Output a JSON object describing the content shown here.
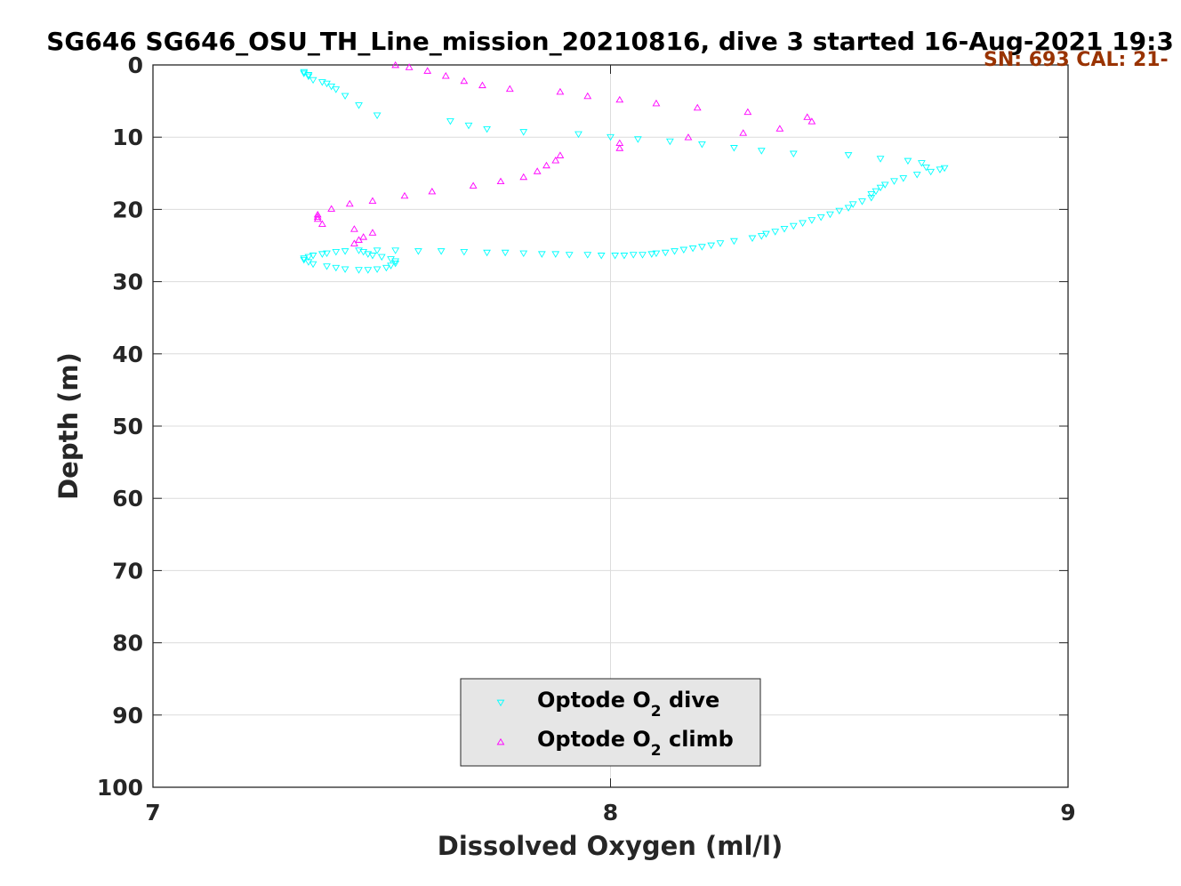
{
  "chart_data": {
    "type": "scatter",
    "title": "SG646 SG646_OSU_TH_Line_mission_20210816, dive 3 started 16-Aug-2021 19:3",
    "annotation": "SN: 693  CAL: 21-",
    "xlabel": "Dissolved Oxygen (ml/l)",
    "ylabel": "Depth (m)",
    "xlim": [
      7,
      9
    ],
    "ylim": [
      0,
      100
    ],
    "y_reversed": true,
    "x_ticks": [
      "7",
      "8",
      "9"
    ],
    "y_ticks": [
      "0",
      "10",
      "20",
      "30",
      "40",
      "50",
      "60",
      "70",
      "80",
      "90",
      "100"
    ],
    "grid": true,
    "legend_position": "bottom-center",
    "colors": {
      "dive": "#00ffff",
      "climb": "#ff00ff",
      "annotation": "#993300",
      "legend_bg": "#e6e6e6"
    },
    "series": [
      {
        "name": "Optode O2 dive",
        "legend_main": "Optode O",
        "legend_sub": "2",
        "legend_tail": " dive",
        "marker": "triangle-down",
        "x": [
          7.33,
          7.33,
          7.34,
          7.34,
          7.35,
          7.37,
          7.38,
          7.39,
          7.4,
          7.42,
          7.45,
          7.49,
          7.65,
          7.69,
          7.73,
          7.81,
          7.93,
          8.0,
          8.06,
          8.13,
          8.2,
          8.27,
          8.33,
          8.4,
          8.52,
          8.59,
          8.65,
          8.68,
          8.69,
          8.72,
          8.73,
          8.7,
          8.67,
          8.64,
          8.62,
          8.6,
          8.59,
          8.58,
          8.57,
          8.57,
          8.55,
          8.53,
          8.52,
          8.5,
          8.48,
          8.46,
          8.44,
          8.42,
          8.4,
          8.38,
          8.36,
          8.34,
          8.33,
          8.31,
          8.27,
          8.24,
          8.22,
          8.2,
          8.18,
          8.16,
          8.14,
          8.12,
          8.1,
          8.09,
          8.07,
          8.05,
          8.03,
          8.01,
          7.98,
          7.95,
          7.91,
          7.88,
          7.85,
          7.81,
          7.77,
          7.73,
          7.68,
          7.63,
          7.58,
          7.53,
          7.49,
          7.45,
          7.42,
          7.4,
          7.38,
          7.37,
          7.35,
          7.34,
          7.33,
          7.33,
          7.34,
          7.35,
          7.38,
          7.4,
          7.42,
          7.45,
          7.47,
          7.49,
          7.51,
          7.52,
          7.53,
          7.53,
          7.52,
          7.5,
          7.48,
          7.47,
          7.46
        ],
        "y": [
          1.0,
          1.2,
          1.4,
          1.6,
          2.1,
          2.4,
          2.6,
          3.0,
          3.4,
          4.3,
          5.6,
          7.0,
          7.8,
          8.4,
          8.9,
          9.3,
          9.6,
          10.0,
          10.3,
          10.6,
          11.0,
          11.5,
          11.9,
          12.3,
          12.5,
          13.0,
          13.3,
          13.6,
          14.2,
          14.5,
          14.3,
          14.8,
          15.2,
          15.7,
          16.1,
          16.6,
          17.0,
          17.5,
          17.9,
          18.4,
          18.9,
          19.3,
          19.8,
          20.2,
          20.7,
          21.1,
          21.5,
          21.9,
          22.3,
          22.7,
          23.1,
          23.4,
          23.7,
          24.0,
          24.4,
          24.7,
          25.0,
          25.2,
          25.4,
          25.6,
          25.8,
          26.0,
          26.1,
          26.2,
          26.3,
          26.3,
          26.4,
          26.4,
          26.4,
          26.3,
          26.3,
          26.2,
          26.2,
          26.1,
          26.0,
          26.0,
          25.9,
          25.8,
          25.8,
          25.7,
          25.7,
          25.7,
          25.8,
          25.9,
          26.1,
          26.2,
          26.4,
          26.6,
          26.8,
          27.0,
          27.3,
          27.6,
          27.9,
          28.1,
          28.3,
          28.4,
          28.4,
          28.3,
          28.1,
          27.8,
          27.5,
          27.2,
          26.9,
          26.6,
          26.4,
          26.2,
          25.9
        ]
      },
      {
        "name": "Optode O2 climb",
        "legend_main": "Optode O",
        "legend_sub": "2",
        "legend_tail": " climb",
        "marker": "triangle-up",
        "x": [
          7.53,
          7.56,
          7.6,
          7.64,
          7.68,
          7.72,
          7.78,
          7.89,
          7.95,
          8.02,
          8.1,
          8.19,
          8.3,
          8.37,
          8.43,
          8.44,
          8.29,
          8.17,
          8.02,
          8.02,
          7.89,
          7.88,
          7.86,
          7.84,
          7.81,
          7.76,
          7.7,
          7.61,
          7.55,
          7.48,
          7.43,
          7.39,
          7.36,
          7.36,
          7.36,
          7.37,
          7.44,
          7.46,
          7.45,
          7.44,
          7.48
        ],
        "y": [
          0.0,
          0.3,
          0.8,
          1.5,
          2.2,
          2.8,
          3.3,
          3.7,
          4.3,
          4.8,
          5.3,
          5.9,
          6.5,
          8.8,
          7.2,
          7.8,
          9.4,
          10.0,
          10.8,
          11.5,
          12.5,
          13.2,
          13.9,
          14.7,
          15.5,
          16.1,
          16.7,
          17.5,
          18.1,
          18.8,
          19.2,
          19.9,
          20.7,
          21.3,
          21.0,
          22.0,
          22.7,
          23.8,
          24.2,
          24.7,
          23.2
        ]
      }
    ]
  }
}
